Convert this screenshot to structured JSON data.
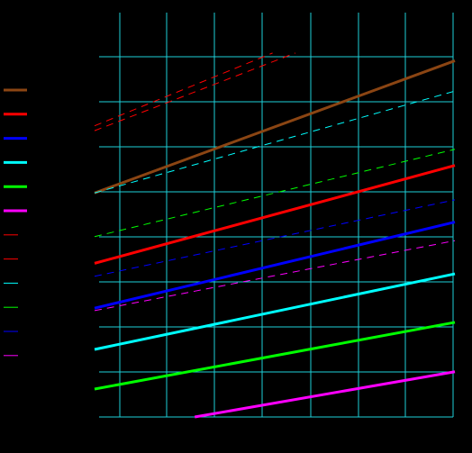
{
  "chart_data": {
    "type": "line",
    "title": "",
    "xlabel": "",
    "ylabel": "",
    "xlim": [
      0,
      100
    ],
    "ylim": [
      0,
      100
    ],
    "grid": true,
    "legend_placement": "left",
    "series": [
      {
        "style": "solid",
        "color": "#8B4513",
        "values": [
          [
            0,
            55.4
          ],
          [
            100,
            88.1
          ]
        ]
      },
      {
        "style": "solid",
        "color": "#FF0000",
        "values": [
          [
            0,
            38.0
          ],
          [
            100,
            62.2
          ]
        ]
      },
      {
        "style": "solid",
        "color": "#0000FF",
        "values": [
          [
            0,
            26.9
          ],
          [
            100,
            48.2
          ]
        ]
      },
      {
        "style": "solid",
        "color": "#00FFFF",
        "values": [
          [
            0,
            16.7
          ],
          [
            100,
            35.4
          ]
        ]
      },
      {
        "style": "solid",
        "color": "#00FF00",
        "values": [
          [
            0,
            6.9
          ],
          [
            100,
            23.4
          ]
        ]
      },
      {
        "style": "solid",
        "color": "#FF00FF",
        "values": [
          [
            27.8,
            0
          ],
          [
            100,
            11.2
          ]
        ]
      },
      {
        "style": "dashed",
        "color": "#FF0000",
        "values": [
          [
            0,
            72.0
          ],
          [
            49.4,
            90.0
          ]
        ]
      },
      {
        "style": "dashed",
        "color": "#FF0000",
        "values": [
          [
            0,
            70.8
          ],
          [
            55.7,
            90.0
          ]
        ]
      },
      {
        "style": "dashed",
        "color": "#00FFFF",
        "values": [
          [
            0,
            55.4
          ],
          [
            100,
            80.6
          ]
        ]
      },
      {
        "style": "dashed",
        "color": "#00FF00",
        "values": [
          [
            0,
            44.6
          ],
          [
            100,
            66.2
          ]
        ]
      },
      {
        "style": "dashed",
        "color": "#0000FF",
        "values": [
          [
            0,
            34.8
          ],
          [
            100,
            53.7
          ]
        ]
      },
      {
        "style": "dashed",
        "color": "#FF00FF",
        "values": [
          [
            0,
            26.3
          ],
          [
            100,
            43.6
          ]
        ]
      }
    ]
  }
}
